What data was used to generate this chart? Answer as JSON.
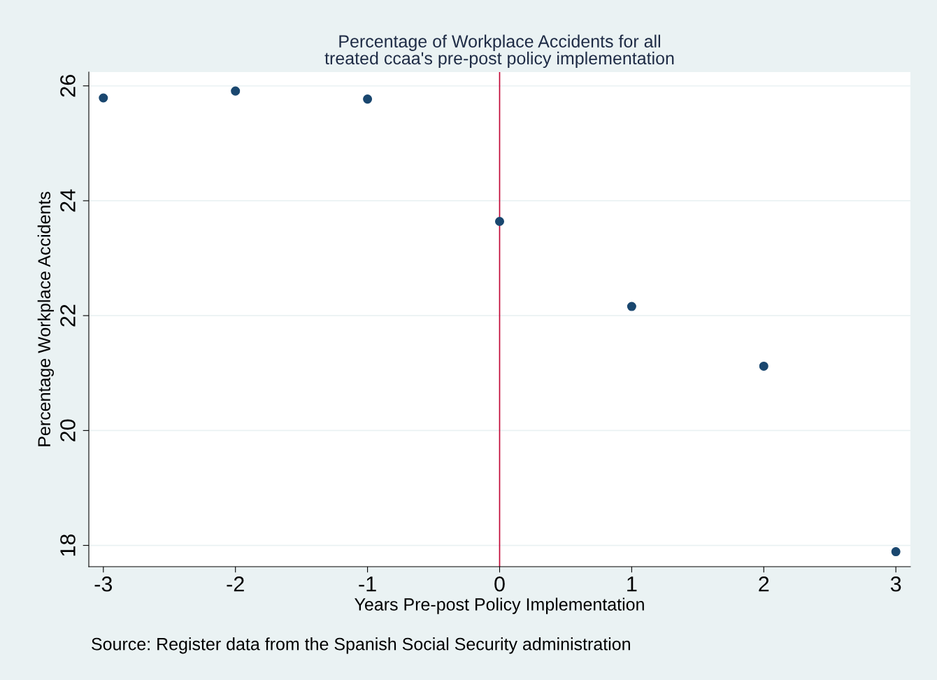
{
  "chart_data": {
    "type": "scatter",
    "title": "Percentage of Workplace Accidents for all\ntreated ccaa's pre-post policy implementation",
    "xlabel": "Years Pre-post Policy Implementation",
    "ylabel": "Percentage Workplace Accidents",
    "annotations": [
      "Source: Register data from the Spanish Social Security administration"
    ],
    "x": [
      -3,
      -2,
      -1,
      0,
      1,
      2,
      3
    ],
    "series": [
      {
        "color": "#1a476f",
        "values": [
          25.79,
          25.91,
          25.77,
          23.64,
          22.16,
          21.12,
          17.89
        ]
      }
    ],
    "xlim": [
      -3.11,
      3.11
    ],
    "xticks": [
      -3,
      -2,
      -1,
      0,
      1,
      2,
      3
    ],
    "ylim": [
      17.63,
      26.24
    ],
    "yticks": [
      18,
      20,
      22,
      24,
      26
    ],
    "ref_lines": [
      {
        "axis": "x",
        "value": 0,
        "color": "#c10534"
      }
    ],
    "grid": "y",
    "marker": "circle",
    "legend": false
  }
}
